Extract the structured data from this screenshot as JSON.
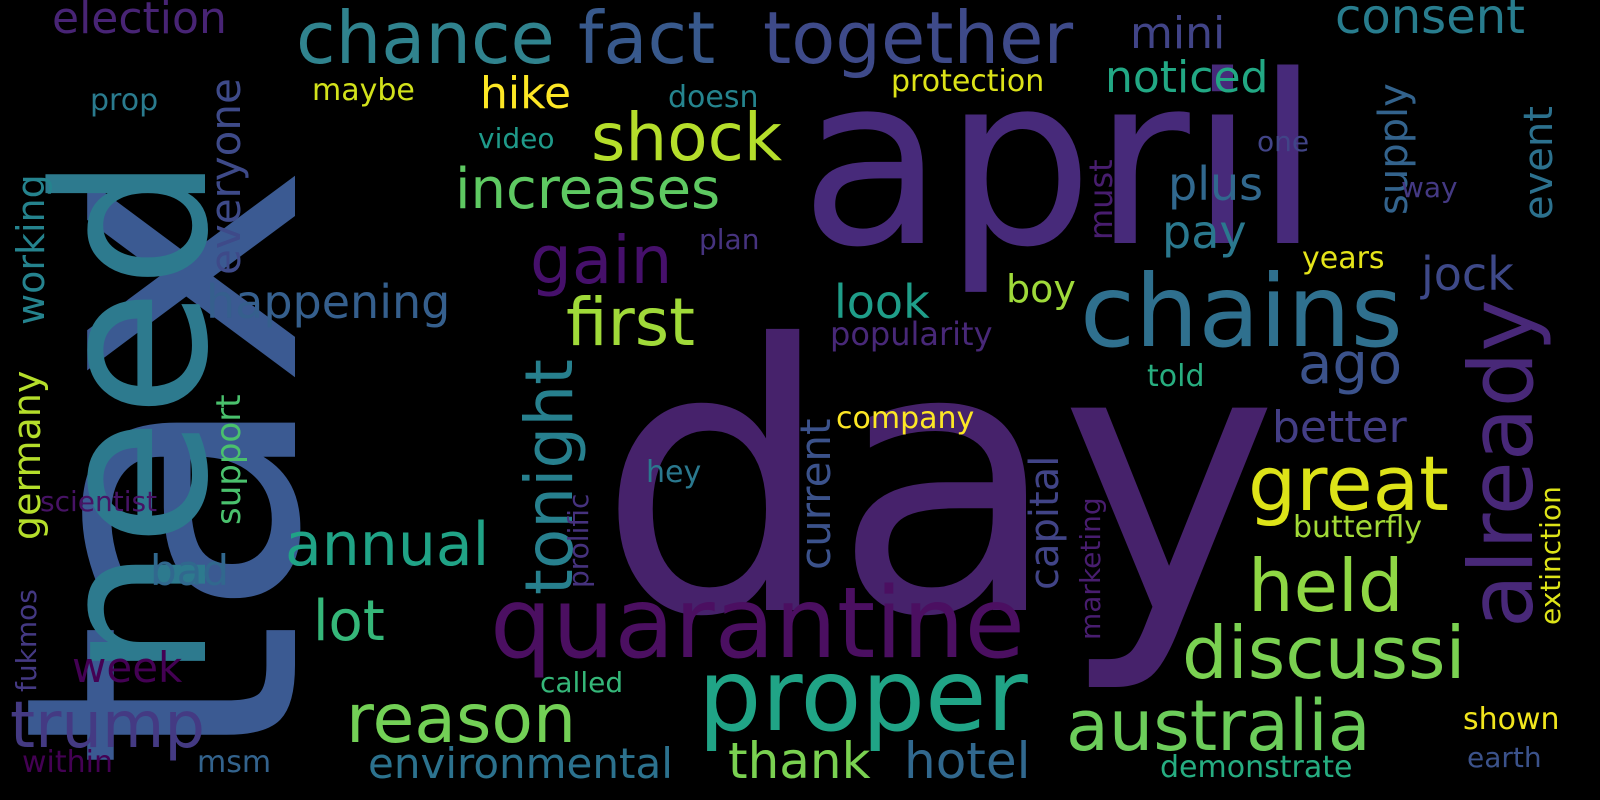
{
  "words": [
    {
      "text": "day",
      "color": "#46226b"
    },
    {
      "text": "tax",
      "color": "#3b5a92"
    },
    {
      "text": "april",
      "color": "#472a7a"
    },
    {
      "text": "need",
      "color": "#2d7a8e"
    },
    {
      "text": "chains",
      "color": "#2f708e"
    },
    {
      "text": "quarantine",
      "color": "#4b0f61"
    },
    {
      "text": "proper",
      "color": "#20a486"
    },
    {
      "text": "together",
      "color": "#3e4a89"
    },
    {
      "text": "fact",
      "color": "#38598c"
    },
    {
      "text": "chance",
      "color": "#30838e"
    },
    {
      "text": "great",
      "color": "#dde318"
    },
    {
      "text": "already",
      "color": "#482878"
    },
    {
      "text": "discussi",
      "color": "#7ad151"
    },
    {
      "text": "australia",
      "color": "#6ccd5a"
    },
    {
      "text": "shock",
      "color": "#b5de2b"
    },
    {
      "text": "tonight",
      "color": "#27808e"
    },
    {
      "text": "held",
      "color": "#8fd744"
    },
    {
      "text": "reason",
      "color": "#73d056"
    },
    {
      "text": "increases",
      "color": "#5ec962"
    },
    {
      "text": "gain",
      "color": "#46106b"
    },
    {
      "text": "first",
      "color": "#a0da39"
    },
    {
      "text": "trump",
      "color": "#443a83"
    },
    {
      "text": "annual",
      "color": "#20a386"
    },
    {
      "text": "consent",
      "color": "#287d8e"
    },
    {
      "text": "election",
      "color": "#482475"
    },
    {
      "text": "ago",
      "color": "#3b528b"
    },
    {
      "text": "lot",
      "color": "#35b779"
    },
    {
      "text": "thank",
      "color": "#7ad151"
    },
    {
      "text": "hotel",
      "color": "#31688e"
    },
    {
      "text": "happening",
      "color": "#355f8d"
    },
    {
      "text": "noticed",
      "color": "#22a884"
    },
    {
      "text": "mini",
      "color": "#414487"
    },
    {
      "text": "jock",
      "color": "#3e4989"
    },
    {
      "text": "environmental",
      "color": "#2c728e"
    },
    {
      "text": "current",
      "color": "#3b528b"
    },
    {
      "text": "capital",
      "color": "#414487"
    },
    {
      "text": "hike",
      "color": "#fde725"
    },
    {
      "text": "plus",
      "color": "#31688e"
    },
    {
      "text": "pay",
      "color": "#2a788e"
    },
    {
      "text": "better",
      "color": "#433e85"
    },
    {
      "text": "look",
      "color": "#1f9e89"
    },
    {
      "text": "everyone",
      "color": "#3e4a89"
    },
    {
      "text": "supply",
      "color": "#33638d"
    },
    {
      "text": "event",
      "color": "#2c718e"
    },
    {
      "text": "week",
      "color": "#440154"
    },
    {
      "text": "bad",
      "color": "#31688e"
    },
    {
      "text": "working",
      "color": "#25838e"
    },
    {
      "text": "germany",
      "color": "#b5de2b"
    },
    {
      "text": "support",
      "color": "#4ac16d"
    },
    {
      "text": "boy",
      "color": "#9fda3a"
    },
    {
      "text": "popularity",
      "color": "#482878"
    },
    {
      "text": "must",
      "color": "#481d6f"
    },
    {
      "text": "company",
      "color": "#fde725"
    },
    {
      "text": "protection",
      "color": "#dde318"
    },
    {
      "text": "extinction",
      "color": "#dde318"
    },
    {
      "text": "butterfly",
      "color": "#a2da37"
    },
    {
      "text": "demonstrate",
      "color": "#26ad81"
    },
    {
      "text": "shown",
      "color": "#f1e51d"
    },
    {
      "text": "earth",
      "color": "#3b528b"
    },
    {
      "text": "years",
      "color": "#e5e419"
    },
    {
      "text": "hey",
      "color": "#2a788e"
    },
    {
      "text": "told",
      "color": "#28ae80"
    },
    {
      "text": "prolific",
      "color": "#46327e"
    },
    {
      "text": "marketing",
      "color": "#481d6f"
    },
    {
      "text": "plan",
      "color": "#46337f"
    },
    {
      "text": "video",
      "color": "#1f9a8a"
    },
    {
      "text": "doesn",
      "color": "#25848e"
    },
    {
      "text": "maybe",
      "color": "#d2e21b"
    },
    {
      "text": "prop",
      "color": "#2a7b8e"
    },
    {
      "text": "one",
      "color": "#414487"
    },
    {
      "text": "way",
      "color": "#443983"
    },
    {
      "text": "scientist",
      "color": "#471365"
    },
    {
      "text": "fukmos",
      "color": "#443983"
    },
    {
      "text": "within",
      "color": "#440154"
    },
    {
      "text": "msm",
      "color": "#33638d"
    },
    {
      "text": "called",
      "color": "#35b779"
    }
  ]
}
